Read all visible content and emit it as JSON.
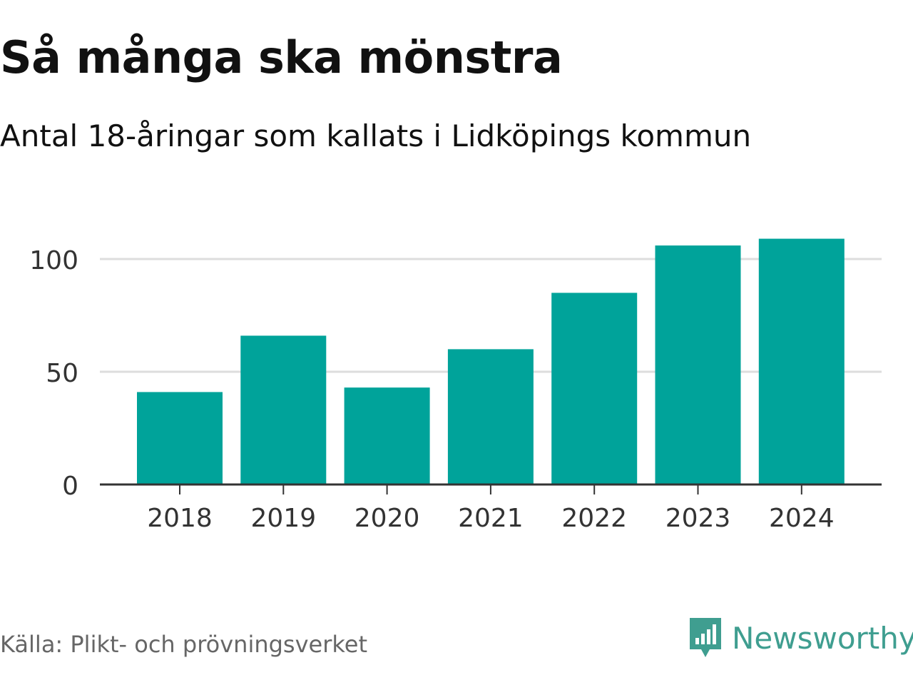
{
  "title": "Så många ska mönstra",
  "subtitle": "Antal 18-åringar som kallats i Lidköpings kommun",
  "source": "Källa: Plikt- och prövningsverket",
  "brand": {
    "name": "Newsworthy",
    "icon": "newsworthy-logo-icon",
    "color": "#3f9e90"
  },
  "colors": {
    "bar": "#00a39a",
    "grid": "#dddddd",
    "axis": "#333333"
  },
  "chart_data": {
    "type": "bar",
    "categories": [
      "2018",
      "2019",
      "2020",
      "2021",
      "2022",
      "2023",
      "2024"
    ],
    "values": [
      41,
      66,
      43,
      60,
      85,
      106,
      109
    ],
    "title": "Så många ska mönstra",
    "subtitle": "Antal 18-åringar som kallats i Lidköpings kommun",
    "xlabel": "",
    "ylabel": "",
    "ylim": [
      0,
      110
    ],
    "yticks": [
      0,
      50,
      100
    ],
    "grid": true
  }
}
